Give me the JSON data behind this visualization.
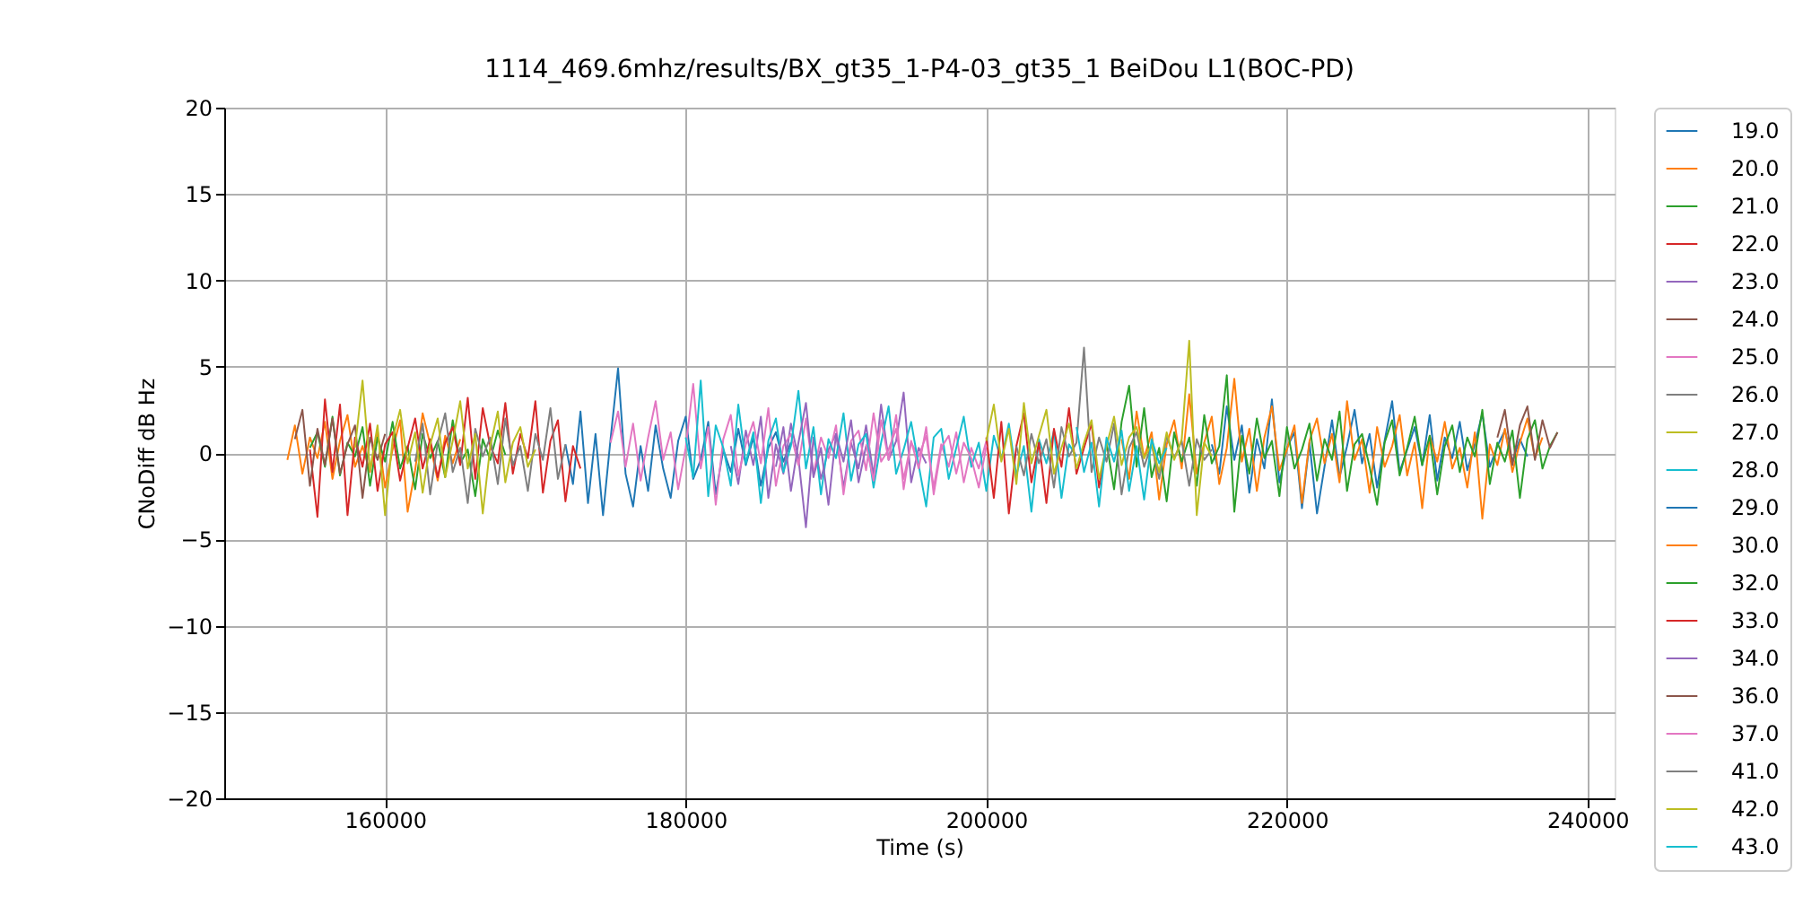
{
  "chart_data": {
    "type": "line",
    "title": "1114_469.6mhz/results/BX_gt35_1-P4-03_gt35_1 BeiDou L1(BOC-PD)",
    "xlabel": "Time (s)",
    "ylabel": "CNoDiff dB Hz",
    "xlim": [
      149300,
      241800
    ],
    "xticks": [
      160000,
      180000,
      200000,
      220000,
      240000
    ],
    "ylim": [
      -20,
      20
    ],
    "yticks": [
      -20,
      -15,
      -10,
      -5,
      0,
      5,
      10,
      15,
      20
    ],
    "grid": true,
    "legend": "right",
    "series": [
      {
        "name": "19.0",
        "color": "#1f77b4",
        "x": [
          172000,
          172500,
          173000,
          173500,
          174000,
          174500,
          175000,
          175500,
          176000,
          176500,
          177000,
          177500,
          178000,
          178500,
          179000,
          179500,
          180000,
          180500,
          181000,
          181500,
          182000,
          182500,
          183000,
          183500,
          184000,
          184500,
          185000,
          185500,
          186000,
          186500,
          187000
        ],
        "values": [
          0.5,
          -1.8,
          2.4,
          -2.9,
          1.1,
          -3.6,
          0.8,
          4.9,
          -1.2,
          -3.1,
          0.4,
          -2.2,
          1.6,
          -0.9,
          -2.6,
          0.7,
          2.1,
          -1.5,
          -0.4,
          1.8,
          -2.4,
          0.2,
          -1.1,
          1.4,
          -0.7,
          0.9,
          -1.9,
          0.3,
          1.2,
          -0.5,
          0.6
        ]
      },
      {
        "name": "20.0",
        "color": "#ff7f0e",
        "x": [
          153500,
          154000,
          154500,
          155000,
          155500,
          156000,
          156500,
          157000,
          157500,
          158000,
          158500,
          159000,
          159500,
          160000,
          160500,
          161000,
          161500,
          162000,
          162500,
          163000,
          163500,
          164000,
          164500,
          165000
        ],
        "values": [
          -0.4,
          1.6,
          -1.2,
          0.9,
          -0.3,
          1.8,
          -1.5,
          0.7,
          2.2,
          -0.8,
          0.4,
          -1.1,
          1.3,
          -2.0,
          0.2,
          1.9,
          -3.4,
          -1.0,
          2.3,
          0.5,
          -1.6,
          1.0,
          -0.6,
          0.8
        ]
      },
      {
        "name": "21.0",
        "color": "#2ca02c",
        "x": [
          155000,
          155500,
          156000,
          156500,
          157000,
          157500,
          158000,
          158500,
          159000,
          159500,
          160000,
          160500,
          161000,
          161500,
          162000,
          162500,
          163000,
          163500,
          164000,
          164500,
          165000,
          165500,
          166000,
          166500,
          167000,
          167500,
          168000
        ],
        "values": [
          0.3,
          1.2,
          -0.8,
          2.1,
          -1.3,
          0.6,
          -0.2,
          1.5,
          -1.9,
          0.9,
          -0.5,
          1.8,
          -0.9,
          0.4,
          -2.1,
          1.1,
          -0.3,
          0.7,
          -1.4,
          1.9,
          -0.6,
          0.2,
          -2.5,
          0.8,
          -0.4,
          1.3,
          -0.1
        ]
      },
      {
        "name": "22.0",
        "color": "#d62728",
        "x": [
          155000,
          155500,
          156000,
          156500,
          157000,
          157500,
          158000,
          158500,
          159000,
          159500,
          160000,
          160500,
          161000,
          161500,
          162000,
          162500,
          163000,
          163500,
          164000,
          164500,
          165000,
          165500,
          166000,
          166500,
          167000,
          167500,
          168000,
          168500,
          169000,
          169500,
          170000,
          170500,
          171000,
          171500,
          172000,
          172500,
          173000
        ],
        "values": [
          0.2,
          -3.7,
          3.1,
          -1.1,
          2.8,
          -3.6,
          0.9,
          -0.8,
          1.7,
          -2.2,
          0.5,
          1.2,
          -1.6,
          0.3,
          2.0,
          -0.9,
          0.8,
          -1.4,
          0.6,
          1.5,
          -0.7,
          3.2,
          -1.5,
          2.6,
          0.4,
          -0.6,
          2.9,
          -1.2,
          1.1,
          -0.3,
          3.0,
          -2.3,
          0.7,
          1.9,
          -2.8,
          0.4,
          -0.9
        ]
      },
      {
        "name": "23.0",
        "color": "#9467bd",
        "x": [
          183000,
          183500,
          184000,
          184500,
          185000,
          185500,
          186000,
          186500,
          187000,
          187500,
          188000,
          188500,
          189000,
          189500,
          190000,
          190500,
          191000,
          191500,
          192000,
          192500,
          193000,
          193500,
          194000,
          194500,
          195000,
          195500,
          196000
        ],
        "values": [
          0.4,
          -1.8,
          1.3,
          -0.7,
          2.1,
          -2.6,
          0.5,
          -1.2,
          1.7,
          -0.3,
          -4.3,
          0.9,
          -1.5,
          0.2,
          1.1,
          -2.0,
          0.6,
          -0.9,
          1.6,
          -1.3,
          2.8,
          -0.4,
          0.7,
          3.5,
          -1.7,
          0.3,
          -0.6
        ]
      },
      {
        "name": "24.0",
        "color": "#8c564b",
        "x": [
          154000,
          154500,
          155000,
          155500,
          156000,
          156500,
          157000,
          157500,
          158000,
          158500,
          159000,
          159500,
          160000
        ],
        "values": [
          0.8,
          2.5,
          -1.9,
          1.4,
          -0.7,
          2.0,
          -1.2,
          0.5,
          1.6,
          -2.6,
          0.9,
          -0.4,
          1.1
        ]
      },
      {
        "name": "25.0",
        "color": "#e377c2",
        "x": [
          175000,
          175500,
          176000,
          176500,
          177000,
          177500,
          178000,
          178500,
          179000,
          179500,
          180000,
          180500,
          181000,
          181500,
          182000,
          182500,
          183000,
          183500,
          184000,
          184500,
          185000,
          185500,
          186000,
          186500,
          187000,
          187500,
          188000,
          188500,
          189000,
          189500,
          190000,
          190500,
          191000,
          191500,
          192000,
          192500,
          193000,
          193500,
          194000,
          194500,
          195000,
          195500,
          196000,
          196500,
          197000,
          197500,
          198000,
          198500,
          199000,
          199500,
          200000
        ],
        "values": [
          0.6,
          2.4,
          -0.8,
          1.7,
          -1.6,
          0.9,
          3.0,
          -0.4,
          1.2,
          -2.1,
          0.3,
          4.0,
          -0.9,
          1.5,
          -3.0,
          0.8,
          2.2,
          -1.3,
          0.5,
          1.8,
          -0.6,
          2.6,
          -1.9,
          0.4,
          1.1,
          -0.7,
          2.0,
          -1.2,
          0.9,
          -0.3,
          1.6,
          -2.4,
          0.7,
          1.3,
          -1.0,
          2.3,
          -0.5,
          0.2,
          1.4,
          -1.5,
          0.6,
          -0.2,
          1.0,
          -2.0,
          0.5,
          -0.8,
          1.2,
          -1.7,
          0.3,
          -0.9,
          0.7
        ]
      },
      {
        "name": "26.0",
        "color": "#7f7f7f",
        "x": [
          162000,
          162500,
          163000,
          163500,
          164000,
          164500,
          165000,
          165500,
          166000,
          166500,
          167000,
          167500,
          168000,
          168500,
          169000,
          169500,
          170000,
          170500,
          171000,
          171500,
          172000
        ],
        "values": [
          -0.5,
          1.7,
          -2.4,
          0.6,
          2.3,
          -1.1,
          0.3,
          -2.9,
          1.4,
          -0.2,
          0.9,
          -1.8,
          2.0,
          -0.7,
          0.4,
          -2.2,
          1.1,
          -0.4,
          2.6,
          -1.5,
          0.5
        ]
      },
      {
        "name": "27.0",
        "color": "#bcbd22",
        "x": [
          158000,
          158500,
          159000,
          159500,
          160000,
          160500,
          161000,
          161500,
          162000,
          162500,
          163000,
          163500,
          164000,
          164500,
          165000,
          165500,
          166000,
          166500,
          167000,
          167500,
          168000,
          168500,
          169000,
          169500,
          170000
        ],
        "values": [
          0.3,
          4.2,
          -1.0,
          1.6,
          -3.6,
          0.8,
          2.5,
          -0.6,
          1.2,
          -2.3,
          0.5,
          2.0,
          -1.4,
          0.7,
          3.0,
          -0.9,
          1.1,
          -3.5,
          0.4,
          2.4,
          -1.7,
          0.6,
          1.5,
          -0.8,
          0.2
        ]
      },
      {
        "name": "28.0",
        "color": "#17becf",
        "x": [
          180000,
          180500,
          181000,
          181500,
          182000,
          182500,
          183000,
          183500,
          184000,
          184500,
          185000,
          185500,
          186000,
          186500,
          187000,
          187500,
          188000,
          188500,
          189000,
          189500,
          190000,
          190500,
          191000,
          191500,
          192000,
          192500,
          193000,
          193500,
          194000,
          194500,
          195000,
          195500,
          196000,
          196500,
          197000,
          197500,
          198000,
          198500,
          199000,
          199500,
          200000,
          200500,
          201000,
          201500,
          202000,
          202500,
          203000,
          203500,
          204000,
          204500,
          205000,
          205500,
          206000
        ],
        "values": [
          0.9,
          -1.4,
          4.2,
          -2.5,
          1.6,
          0.3,
          -1.9,
          2.8,
          -0.6,
          1.2,
          -2.9,
          0.7,
          2.0,
          -1.1,
          0.4,
          3.6,
          -0.9,
          1.5,
          -2.4,
          0.8,
          -0.3,
          2.3,
          -1.6,
          0.5,
          1.1,
          -2.0,
          0.6,
          2.7,
          -1.2,
          0.2,
          1.8,
          -0.7,
          -3.1,
          0.9,
          1.4,
          -1.5,
          0.3,
          2.1,
          -0.8,
          0.6,
          -2.2,
          1.0,
          -0.4,
          1.7,
          -1.3,
          0.4,
          -3.4,
          0.8,
          -0.6,
          1.3,
          -2.6,
          0.5,
          -0.2
        ]
      },
      {
        "name": "29.0",
        "color": "#1f77b4",
        "x": [
          215000,
          215500,
          216000,
          216500,
          217000,
          217500,
          218000,
          218500,
          219000,
          219500,
          220000,
          220500,
          221000,
          221500,
          222000,
          222500,
          223000,
          223500,
          224000,
          224500,
          225000,
          225500,
          226000,
          226500,
          227000,
          227500,
          228000,
          228500,
          229000,
          229500,
          230000,
          230500,
          231000,
          231500,
          232000,
          232500,
          233000,
          233500,
          234000,
          234500,
          235000,
          235500,
          236000
        ],
        "values": [
          0.5,
          -1.2,
          2.7,
          -0.4,
          1.6,
          -2.3,
          0.8,
          -0.9,
          3.1,
          -1.7,
          0.3,
          1.2,
          -3.2,
          0.6,
          -3.5,
          -0.8,
          1.9,
          -1.4,
          0.4,
          2.5,
          -0.6,
          1.1,
          -2.0,
          0.7,
          3.0,
          -1.1,
          0.2,
          1.5,
          -0.7,
          2.2,
          -1.6,
          0.9,
          -0.3,
          1.8,
          -1.0,
          0.5,
          2.3,
          -0.8,
          0.4,
          1.3,
          -0.5,
          0.8,
          -0.2
        ]
      },
      {
        "name": "30.0",
        "color": "#ff7f0e",
        "x": [
          209000,
          209500,
          210000,
          210500,
          211000,
          211500,
          212000,
          212500,
          213000,
          213500,
          214000,
          214500,
          215000,
          215500,
          216000,
          216500,
          217000,
          217500,
          218000,
          218500,
          219000,
          219500,
          220000,
          220500,
          221000,
          221500,
          222000,
          222500,
          223000,
          223500,
          224000,
          224500,
          225000,
          225500,
          226000,
          226500,
          227000,
          227500,
          228000,
          228500,
          229000,
          229500,
          230000,
          230500,
          231000,
          231500,
          232000,
          232500,
          233000,
          233500,
          234000,
          234500,
          235000,
          235500,
          236000,
          236500,
          237000
        ],
        "values": [
          0.8,
          -1.5,
          2.4,
          -0.3,
          1.2,
          -2.7,
          0.5,
          1.9,
          -0.9,
          3.4,
          -1.2,
          0.6,
          2.1,
          -1.8,
          0.3,
          4.3,
          -0.5,
          1.4,
          -2.2,
          0.9,
          2.7,
          -1.0,
          0.2,
          1.6,
          -2.9,
          0.7,
          2.0,
          -0.6,
          1.1,
          -1.7,
          3.0,
          -0.4,
          0.8,
          -2.3,
          1.5,
          -0.8,
          0.4,
          2.2,
          -1.3,
          0.6,
          -3.2,
          1.0,
          -0.5,
          1.8,
          -0.9,
          0.3,
          -2.0,
          1.2,
          -3.8,
          0.5,
          -0.7,
          1.4,
          -1.1,
          0.6,
          2.0,
          -0.3,
          0.9
        ]
      },
      {
        "name": "32.0",
        "color": "#2ca02c",
        "x": [
          208000,
          208500,
          209000,
          209500,
          210000,
          210500,
          211000,
          211500,
          212000,
          212500,
          213000,
          213500,
          214000,
          214500,
          215000,
          215500,
          216000,
          216500,
          217000,
          217500,
          218000,
          218500,
          219000,
          219500,
          220000,
          220500,
          221000,
          221500,
          222000,
          222500,
          223000,
          223500,
          224000,
          224500,
          225000,
          225500,
          226000,
          226500,
          227000,
          227500,
          228000,
          228500,
          229000,
          229500,
          230000,
          230500,
          231000,
          231500,
          232000,
          232500,
          233000,
          233500,
          234000,
          234500,
          235000,
          235500,
          236000,
          236500,
          237000,
          237500,
          238000
        ],
        "values": [
          0.6,
          -2.1,
          1.8,
          3.9,
          -0.8,
          2.6,
          -1.4,
          0.3,
          -2.8,
          1.2,
          -0.5,
          0.9,
          -1.9,
          2.2,
          -0.6,
          0.4,
          4.5,
          -3.4,
          1.0,
          -1.2,
          2.0,
          -0.3,
          0.7,
          -2.5,
          1.5,
          -0.9,
          0.2,
          1.7,
          -1.6,
          0.8,
          -0.4,
          2.4,
          -2.2,
          0.5,
          1.1,
          -0.8,
          -3.0,
          0.6,
          1.9,
          -1.3,
          0.3,
          2.1,
          -0.7,
          1.0,
          -2.4,
          0.4,
          1.6,
          -1.1,
          0.9,
          -0.2,
          2.5,
          -1.8,
          0.6,
          -0.5,
          1.3,
          -2.6,
          0.8,
          1.9,
          -0.9,
          0.4,
          1.2
        ]
      },
      {
        "name": "33.0",
        "color": "#d62728",
        "x": [
          200000,
          200500,
          201000,
          201500,
          202000,
          202500,
          203000,
          203500,
          204000,
          204500,
          205000,
          205500,
          206000,
          206500,
          207000,
          207500,
          208000
        ],
        "values": [
          0.9,
          -2.6,
          1.8,
          -3.5,
          0.4,
          2.3,
          -1.7,
          0.6,
          -2.9,
          1.4,
          -0.8,
          2.6,
          -1.2,
          0.3,
          1.7,
          -2.0,
          0.5
        ]
      },
      {
        "name": "34.0",
        "color": "#9467bd",
        "x": [
          186000,
          186500,
          187000,
          187500,
          188000,
          188500,
          189000,
          189500,
          190000,
          190500,
          191000,
          191500,
          192000
        ],
        "values": [
          -0.8,
          1.5,
          -2.2,
          0.6,
          2.9,
          -1.4,
          0.3,
          -3.0,
          1.1,
          -0.5,
          1.9,
          -1.7,
          0.4
        ]
      },
      {
        "name": "36.0",
        "color": "#8c564b",
        "x": [
          234000,
          234500,
          235000,
          235500,
          236000,
          236500,
          237000,
          237500,
          238000
        ],
        "values": [
          0.9,
          2.5,
          -0.7,
          1.6,
          2.7,
          -0.4,
          1.9,
          0.3,
          1.2
        ]
      },
      {
        "name": "37.0",
        "color": "#e377c2",
        "x": [
          192000,
          192500,
          193000,
          193500,
          194000,
          194500,
          195000,
          195500,
          196000,
          196500,
          197000,
          197500,
          198000,
          198500,
          199000,
          199500,
          200000
        ],
        "values": [
          0.5,
          -1.6,
          1.9,
          -0.4,
          2.2,
          -2.1,
          0.7,
          -0.9,
          1.5,
          -2.4,
          0.3,
          1.0,
          -1.2,
          0.6,
          -0.3,
          -2.0,
          0.4
        ]
      },
      {
        "name": "41.0",
        "color": "#7f7f7f",
        "x": [
          202000,
          202500,
          203000,
          203500,
          204000,
          204500,
          205000,
          205500,
          206000,
          206500,
          207000,
          207500,
          208000,
          208500,
          209000,
          209500,
          210000,
          210500,
          211000,
          211500,
          212000,
          212500,
          213000,
          213500,
          214000,
          214500,
          215000
        ],
        "values": [
          0.4,
          -1.3,
          1.1,
          -0.6,
          0.8,
          -2.0,
          1.5,
          -0.2,
          0.6,
          6.1,
          -1.1,
          0.9,
          -0.5,
          1.7,
          -2.4,
          0.3,
          1.2,
          -0.8,
          0.5,
          -1.5,
          1.0,
          -0.3,
          0.7,
          -1.9,
          0.8,
          -0.4,
          0.2
        ]
      },
      {
        "name": "42.0",
        "color": "#bcbd22",
        "x": [
          200000,
          200500,
          201000,
          201500,
          202000,
          202500,
          203000,
          203500,
          204000,
          204500,
          205000,
          205500,
          206000,
          206500,
          207000,
          207500,
          208000,
          208500,
          209000,
          209500,
          210000,
          210500,
          211000,
          211500,
          212000,
          212500,
          213000,
          213500,
          214000,
          214500,
          215000
        ],
        "values": [
          0.7,
          2.8,
          -0.5,
          1.4,
          -1.8,
          2.9,
          -0.6,
          1.0,
          2.5,
          -1.2,
          0.3,
          1.7,
          -0.9,
          0.6,
          1.9,
          -1.5,
          0.4,
          2.1,
          -0.7,
          0.9,
          1.5,
          -0.3,
          0.5,
          -1.1,
          1.2,
          -0.4,
          0.8,
          6.5,
          -3.6,
          0.6,
          -0.2
        ]
      },
      {
        "name": "43.0",
        "color": "#17becf",
        "x": [
          206000,
          206500,
          207000,
          207500,
          208000,
          208500,
          209000,
          209500,
          210000,
          210500,
          211000,
          211500,
          212000
        ],
        "values": [
          1.5,
          -1.1,
          0.6,
          -3.1,
          0.9,
          -0.5,
          1.3,
          -2.2,
          0.4,
          -2.7,
          0.8,
          -0.6,
          0.3
        ]
      }
    ]
  }
}
